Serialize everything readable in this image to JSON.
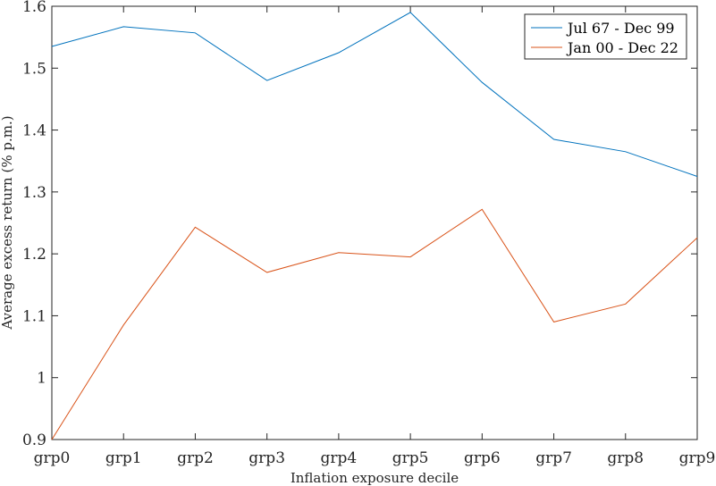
{
  "chart_data": {
    "type": "line",
    "categories": [
      "grp0",
      "grp1",
      "grp2",
      "grp3",
      "grp4",
      "grp5",
      "grp6",
      "grp7",
      "grp8",
      "grp9"
    ],
    "series": [
      {
        "name": "Jul 67 - Dec 99",
        "color": "#0072BD",
        "values": [
          1.535,
          1.567,
          1.557,
          1.48,
          1.525,
          1.59,
          1.477,
          1.385,
          1.365,
          1.325
        ]
      },
      {
        "name": "Jan 00 - Dec 22",
        "color": "#D95319",
        "values": [
          0.9,
          1.085,
          1.243,
          1.17,
          1.202,
          1.195,
          1.272,
          1.09,
          1.119,
          1.226
        ]
      }
    ],
    "xlabel": "Inflation exposure decile",
    "ylabel": "Average excess return (% p.m.)",
    "ylim": [
      0.9,
      1.6
    ],
    "yticks": [
      "0.9",
      "1",
      "1.1",
      "1.2",
      "1.3",
      "1.4",
      "1.5",
      "1.6"
    ],
    "grid": false,
    "legend_position": "top-right"
  }
}
